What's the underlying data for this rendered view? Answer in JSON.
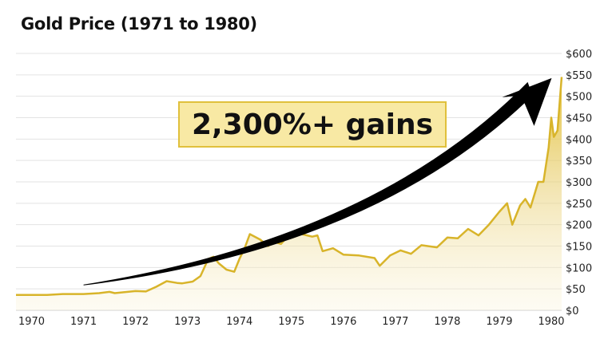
{
  "chart_data": {
    "type": "area",
    "title": "Gold Price (1971 to 1980)",
    "xlabel": "",
    "ylabel": "",
    "xlim": [
      1969.7,
      1980.2
    ],
    "ylim": [
      0,
      600
    ],
    "grid": true,
    "x_ticks": [
      "1970",
      "1971",
      "1972",
      "1973",
      "1974",
      "1975",
      "1976",
      "1977",
      "1978",
      "1979",
      "1980"
    ],
    "y_ticks": [
      "$0",
      "$50",
      "$100",
      "$150",
      "$200",
      "$250",
      "$300",
      "$350",
      "$400",
      "$450",
      "$500",
      "$550",
      "$600"
    ],
    "y_axis_side": "right",
    "colors": {
      "line": "#d8b42a",
      "fill": "#e9cd52",
      "arrow": "#000000",
      "annotation_bg": "#f8e9a4",
      "annotation_border": "#e0c03c"
    },
    "annotation": "2,300%+ gains",
    "series": [
      {
        "x": [
          1969.7,
          1970.3,
          1970.6,
          1971.0,
          1971.3,
          1971.5,
          1971.6,
          1972.0,
          1972.2,
          1972.4,
          1972.6,
          1972.8,
          1972.9,
          1973.1,
          1973.25,
          1973.4,
          1973.5,
          1973.6,
          1973.75,
          1973.9,
          1974.0,
          1974.1,
          1974.2,
          1974.4,
          1974.55,
          1974.65,
          1974.8,
          1975.0,
          1975.1,
          1975.2,
          1975.4,
          1975.5,
          1975.6,
          1975.8,
          1976.0,
          1976.3,
          1976.6,
          1976.7,
          1976.9,
          1977.1,
          1977.3,
          1977.5,
          1977.8,
          1978.0,
          1978.2,
          1978.4,
          1978.6,
          1978.8,
          1979.0,
          1979.15,
          1979.25,
          1979.4,
          1979.5,
          1979.6,
          1979.75,
          1979.85,
          1979.95,
          1980.0,
          1980.05,
          1980.12,
          1980.2
        ],
        "y": [
          36,
          36,
          38,
          38,
          40,
          43,
          40,
          45,
          44,
          55,
          68,
          64,
          63,
          67,
          80,
          120,
          125,
          110,
          95,
          90,
          120,
          145,
          178,
          165,
          150,
          160,
          155,
          182,
          185,
          178,
          172,
          175,
          138,
          145,
          130,
          128,
          122,
          104,
          128,
          140,
          132,
          152,
          147,
          170,
          168,
          190,
          175,
          200,
          230,
          250,
          200,
          245,
          260,
          240,
          300,
          300,
          380,
          450,
          405,
          420,
          545
        ]
      }
    ],
    "trend_arrow": {
      "from": [
        1971.0,
        60
      ],
      "to": [
        1980.1,
        550
      ]
    }
  }
}
